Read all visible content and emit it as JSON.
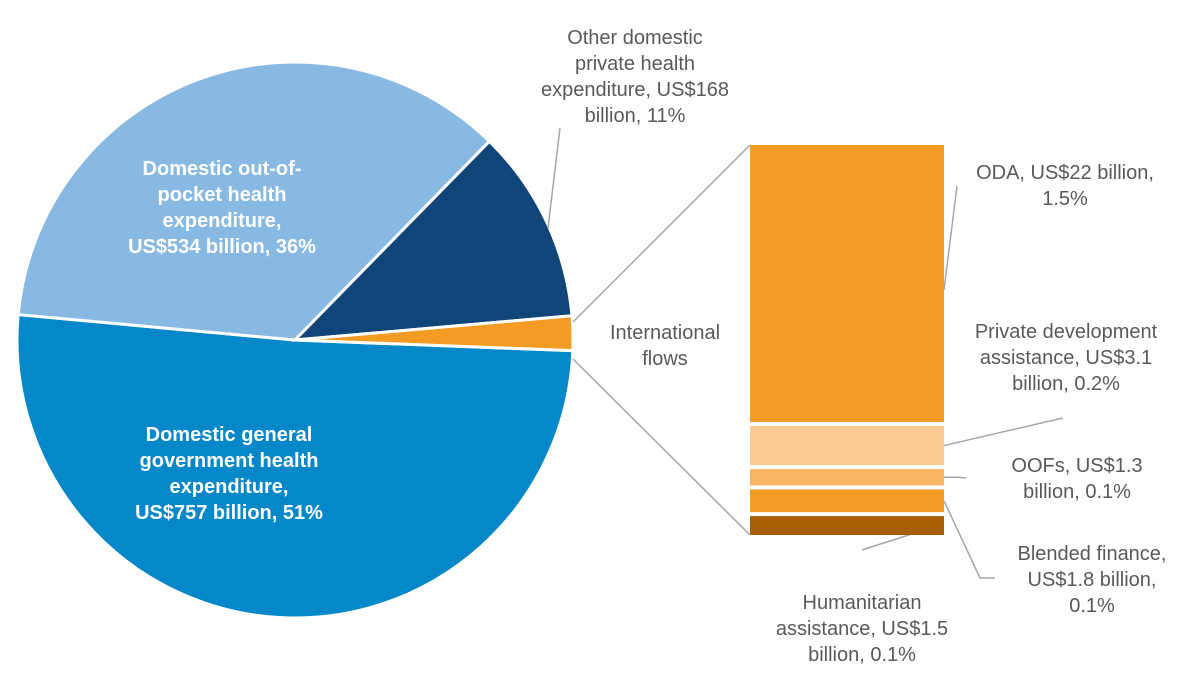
{
  "chart_data": [
    {
      "type": "pie",
      "slices": [
        {
          "label_lines": [
            "Domestic general",
            "government health",
            "expenditure,",
            "US$757 billion, 51%"
          ],
          "value": 757,
          "percent": 51,
          "color": "#0588c9"
        },
        {
          "label_lines": [
            "Domestic out-of-",
            "pocket health",
            "expenditure,",
            "US$534 billion, 36%"
          ],
          "value": 534,
          "percent": 36,
          "color": "#88b9e3"
        },
        {
          "label_lines": [
            "Other domestic",
            "private health",
            "expenditure, US$168",
            "billion, 11%"
          ],
          "value": 168,
          "percent": 11,
          "color": "#10457a"
        },
        {
          "label_lines": [
            "International",
            "flows"
          ],
          "value": 29.8,
          "color": "#f39b23"
        }
      ]
    },
    {
      "type": "bar",
      "stacked": true,
      "segments": [
        {
          "label_lines": [
            "ODA, US$22 billion,",
            "1.5%"
          ],
          "value": 22,
          "percent": 1.5,
          "color": "#f39b23"
        },
        {
          "label_lines": [
            "Private development",
            "assistance, US$3.1",
            "billion, 0.2%"
          ],
          "value": 3.1,
          "percent": 0.2,
          "color": "#fcc991"
        },
        {
          "label_lines": [
            "OOFs, US$1.3",
            "billion, 0.1%"
          ],
          "value": 1.3,
          "percent": 0.1,
          "color": "#f9b464"
        },
        {
          "label_lines": [
            "Blended finance,",
            "US$1.8 billion,",
            "0.1%"
          ],
          "value": 1.8,
          "percent": 0.1,
          "color": "#f39b23"
        },
        {
          "label_lines": [
            "Humanitarian",
            "assistance, US$1.5",
            "billion, 0.1%"
          ],
          "value": 1.5,
          "percent": 0.1,
          "color": "#a65f02"
        }
      ]
    }
  ]
}
